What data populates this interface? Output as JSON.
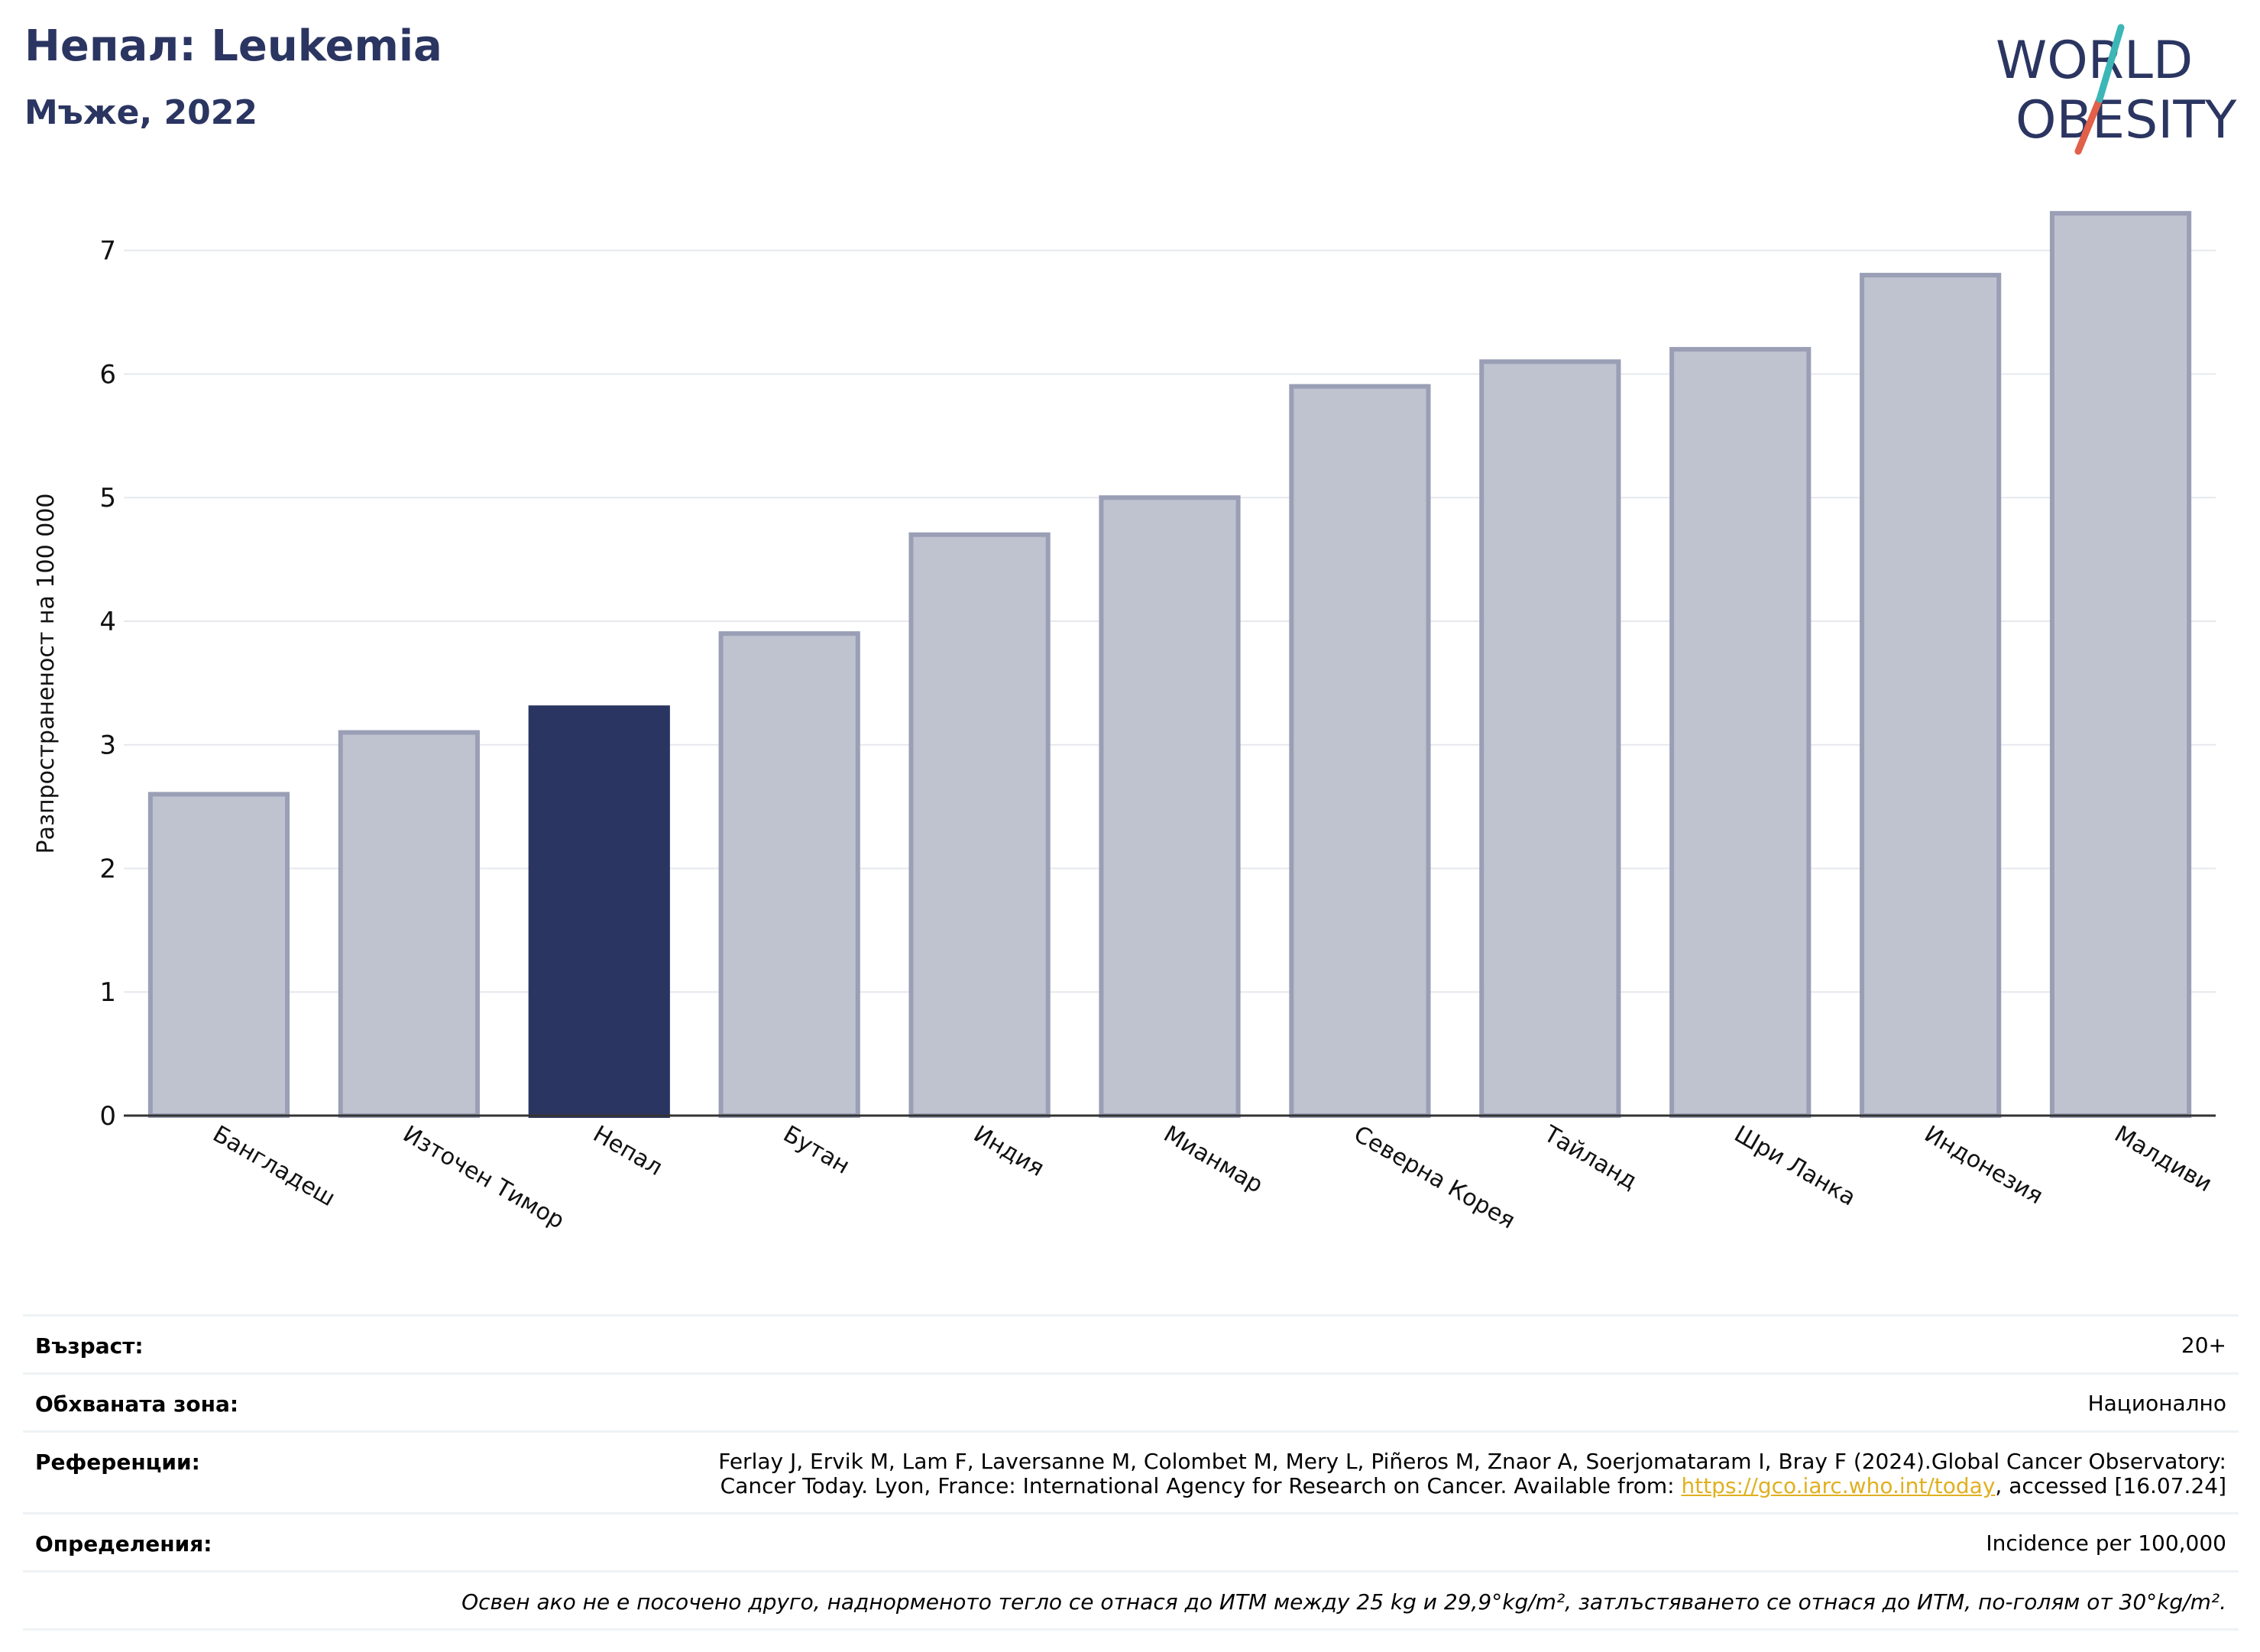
{
  "header": {
    "title": "Непал: Leukemia",
    "subtitle": "Мъже, 2022"
  },
  "logo": {
    "line1": "WORLD",
    "line2": "OBESITY"
  },
  "colors": {
    "highlight": "#2b3561",
    "bar_fill": "#bfc3d0",
    "bar_stroke": "#9a9fb6",
    "grid": "#e6e8ee",
    "logo_text": "#2b3561",
    "logo_teal": "#3cb6b6",
    "logo_red": "#e0604a"
  },
  "chart_data": {
    "type": "bar",
    "ylabel": "Разпространеност  на 100 000",
    "xlabel": "",
    "ylim": [
      0,
      7.4
    ],
    "yticks": [
      0,
      1,
      2,
      3,
      4,
      5,
      6,
      7
    ],
    "grid": true,
    "highlight": "Непал",
    "categories": [
      "Бангладеш",
      "Източен Тимор",
      "Непал",
      "Бутан",
      "Индия",
      "Мианмар",
      "Северна Корея",
      "Тайланд",
      "Шри Ланка",
      "Индонезия",
      "Малдиви"
    ],
    "values": [
      2.6,
      3.1,
      3.3,
      3.9,
      4.7,
      5.0,
      5.9,
      6.1,
      6.2,
      6.8,
      7.3
    ]
  },
  "meta": {
    "age_label": "Възраст:",
    "age_value": "20+",
    "coverage_label": "Обхваната зона:",
    "coverage_value": "Национално",
    "references_label": "Референции:",
    "references_line1": "Ferlay J, Ervik M, Lam F, Laversanne M, Colombet M, Mery L, Piñeros M, Znaor A, Soerjomataram I, Bray F (2024).Global Cancer Observatory:",
    "references_line2_pre": "Cancer Today. Lyon, France: International Agency for Research on Cancer. Available from: ",
    "references_link": "https://gco.iarc.who.int/today",
    "references_line2_post": ", accessed [16.07.24]",
    "definitions_label": "Определения:",
    "definitions_value": "Incidence per 100,000",
    "note": "Освен ако не е посочено друго, наднорменото тегло се отнася до ИТМ между 25 kg и 29,9°kg/m², затлъстяването се отнася до ИТМ, по-голям от 30°kg/m²."
  }
}
